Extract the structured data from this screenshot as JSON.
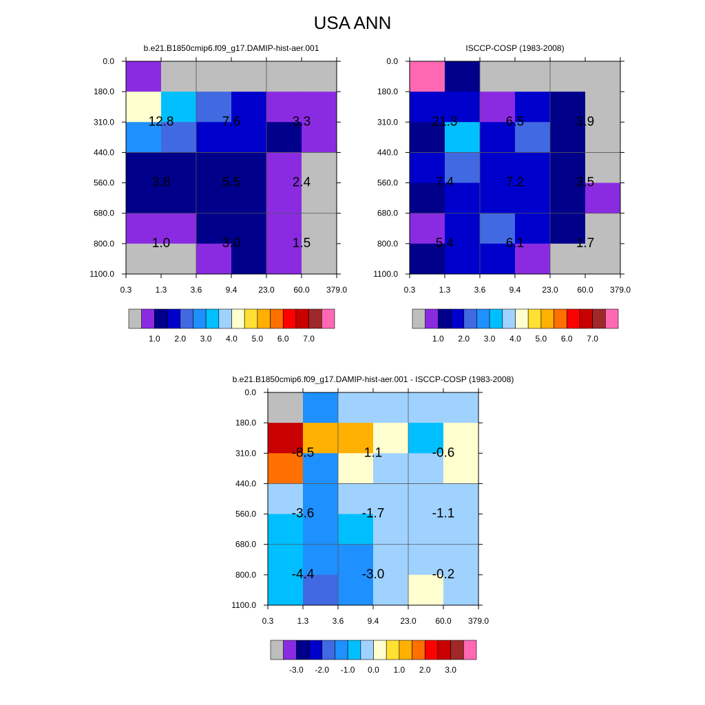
{
  "title": "USA ANN",
  "colors": {
    "abs_palette": [
      "#bebebe",
      "#8a2be2",
      "#00008b",
      "#0000cd",
      "#4169e1",
      "#1e90ff",
      "#00bfff",
      "#a0d2ff",
      "#ffffd0",
      "#ffe033",
      "#ffb000",
      "#ff7000",
      "#ff0000",
      "#c80000",
      "#a02828",
      "#ff69b4"
    ],
    "diff_palette": [
      "#bebebe",
      "#8a2be2",
      "#00008b",
      "#0000cd",
      "#4169e1",
      "#1e90ff",
      "#00bfff",
      "#a0d2ff",
      "#ffffd0",
      "#ffe033",
      "#ffb000",
      "#ff7000",
      "#ff0000",
      "#c80000",
      "#a02828",
      "#ff69b4"
    ]
  },
  "chart_data": [
    {
      "type": "heatmap",
      "panel": "model",
      "title": "b.e21.B1850cmip6.f09_g17.DAMIP-hist-aer.001",
      "x_ticks": [
        "0.3",
        "1.3",
        "3.6",
        "9.4",
        "23.0",
        "60.0",
        "379.0"
      ],
      "y_ticks": [
        "0.0",
        "180.0",
        "310.0",
        "440.0",
        "560.0",
        "680.0",
        "800.0",
        "1100.0"
      ],
      "cell_colors": [
        [
          1,
          0,
          0,
          0,
          0,
          0
        ],
        [
          8,
          6,
          4,
          3,
          1,
          1
        ],
        [
          5,
          4,
          3,
          3,
          2,
          1
        ],
        [
          2,
          2,
          2,
          2,
          1,
          0
        ],
        [
          2,
          2,
          2,
          2,
          1,
          0
        ],
        [
          1,
          1,
          2,
          2,
          1,
          0
        ],
        [
          0,
          0,
          1,
          2,
          1,
          0
        ],
        [
          0,
          0,
          0,
          1,
          0,
          0
        ]
      ],
      "cell_values": [
        [
          null,
          null,
          null,
          null,
          null,
          null,
          null
        ],
        [
          null,
          null,
          null,
          null,
          null,
          null,
          null
        ],
        [
          null,
          null,
          null,
          null,
          null,
          null,
          null
        ],
        [
          null,
          null,
          null,
          null,
          null,
          null,
          null
        ],
        [
          null,
          null,
          null,
          null,
          null,
          null,
          null
        ],
        [
          null,
          null,
          null,
          null,
          null,
          null,
          null
        ],
        [
          null,
          null,
          null,
          null,
          null,
          null,
          null
        ]
      ],
      "box_labels": [
        {
          "row": 0,
          "col": 0,
          "text": "12.8"
        },
        {
          "row": 0,
          "col": 1,
          "text": "7.6"
        },
        {
          "row": 0,
          "col": 2,
          "text": "3.3"
        },
        {
          "row": 1,
          "col": 0,
          "text": "3.8"
        },
        {
          "row": 1,
          "col": 1,
          "text": "5.5"
        },
        {
          "row": 1,
          "col": 2,
          "text": "2.4"
        },
        {
          "row": 2,
          "col": 0,
          "text": "1.0"
        },
        {
          "row": 2,
          "col": 1,
          "text": "3.0"
        },
        {
          "row": 2,
          "col": 2,
          "text": "1.5"
        }
      ],
      "colorbar_labels": [
        "1.0",
        "2.0",
        "3.0",
        "4.0",
        "5.0",
        "6.0",
        "7.0"
      ]
    },
    {
      "type": "heatmap",
      "panel": "obs",
      "title": "ISCCP-COSP (1983-2008)",
      "x_ticks": [
        "0.3",
        "1.3",
        "3.6",
        "9.4",
        "23.0",
        "60.0",
        "379.0"
      ],
      "y_ticks": [
        "0.0",
        "180.0",
        "310.0",
        "440.0",
        "560.0",
        "680.0",
        "800.0",
        "1100.0"
      ],
      "cell_colors": [
        [
          15,
          2,
          0,
          0,
          0,
          0
        ],
        [
          3,
          3,
          1,
          3,
          2,
          0
        ],
        [
          2,
          6,
          3,
          4,
          2,
          0
        ],
        [
          3,
          4,
          3,
          3,
          2,
          0
        ],
        [
          2,
          3,
          3,
          3,
          2,
          1
        ],
        [
          1,
          3,
          4,
          3,
          2,
          0
        ],
        [
          2,
          3,
          3,
          1,
          0,
          0
        ],
        [
          0,
          0,
          0,
          0,
          0,
          0
        ]
      ],
      "box_labels": [
        {
          "row": 0,
          "col": 0,
          "text": "21.3"
        },
        {
          "row": 0,
          "col": 1,
          "text": "6.5"
        },
        {
          "row": 0,
          "col": 2,
          "text": "3.9"
        },
        {
          "row": 1,
          "col": 0,
          "text": "7.4"
        },
        {
          "row": 1,
          "col": 1,
          "text": "7.2"
        },
        {
          "row": 1,
          "col": 2,
          "text": "3.5"
        },
        {
          "row": 2,
          "col": 0,
          "text": "5.4"
        },
        {
          "row": 2,
          "col": 1,
          "text": "6.1"
        },
        {
          "row": 2,
          "col": 2,
          "text": "1.7"
        }
      ],
      "colorbar_labels": [
        "1.0",
        "2.0",
        "3.0",
        "4.0",
        "5.0",
        "6.0",
        "7.0"
      ]
    },
    {
      "type": "heatmap",
      "panel": "diff",
      "title": "b.e21.B1850cmip6.f09_g17.DAMIP-hist-aer.001 - ISCCP-COSP (1983-2008)",
      "x_ticks": [
        "0.3",
        "1.3",
        "3.6",
        "9.4",
        "23.0",
        "60.0",
        "379.0"
      ],
      "y_ticks": [
        "0.0",
        "180.0",
        "310.0",
        "440.0",
        "560.0",
        "680.0",
        "800.0",
        "1100.0"
      ],
      "cell_colors": [
        [
          0,
          5,
          7,
          7,
          7,
          7
        ],
        [
          13,
          10,
          10,
          8,
          6,
          8
        ],
        [
          11,
          5,
          8,
          7,
          7,
          8
        ],
        [
          7,
          5,
          7,
          7,
          7,
          7
        ],
        [
          6,
          5,
          6,
          7,
          7,
          7
        ],
        [
          6,
          5,
          5,
          7,
          7,
          7
        ],
        [
          6,
          4,
          5,
          7,
          8,
          7
        ],
        [
          0,
          0,
          0,
          0,
          0,
          0
        ]
      ],
      "box_labels": [
        {
          "row": 0,
          "col": 0,
          "text": "-8.5"
        },
        {
          "row": 0,
          "col": 1,
          "text": "1.1"
        },
        {
          "row": 0,
          "col": 2,
          "text": "-0.6"
        },
        {
          "row": 1,
          "col": 0,
          "text": "-3.6"
        },
        {
          "row": 1,
          "col": 1,
          "text": "-1.7"
        },
        {
          "row": 1,
          "col": 2,
          "text": "-1.1"
        },
        {
          "row": 2,
          "col": 0,
          "text": "-4.4"
        },
        {
          "row": 2,
          "col": 1,
          "text": "-3.0"
        },
        {
          "row": 2,
          "col": 2,
          "text": "-0.2"
        }
      ],
      "colorbar_labels": [
        "-3.0",
        "-2.0",
        "-1.0",
        "0.0",
        "1.0",
        "2.0",
        "3.0"
      ]
    }
  ]
}
